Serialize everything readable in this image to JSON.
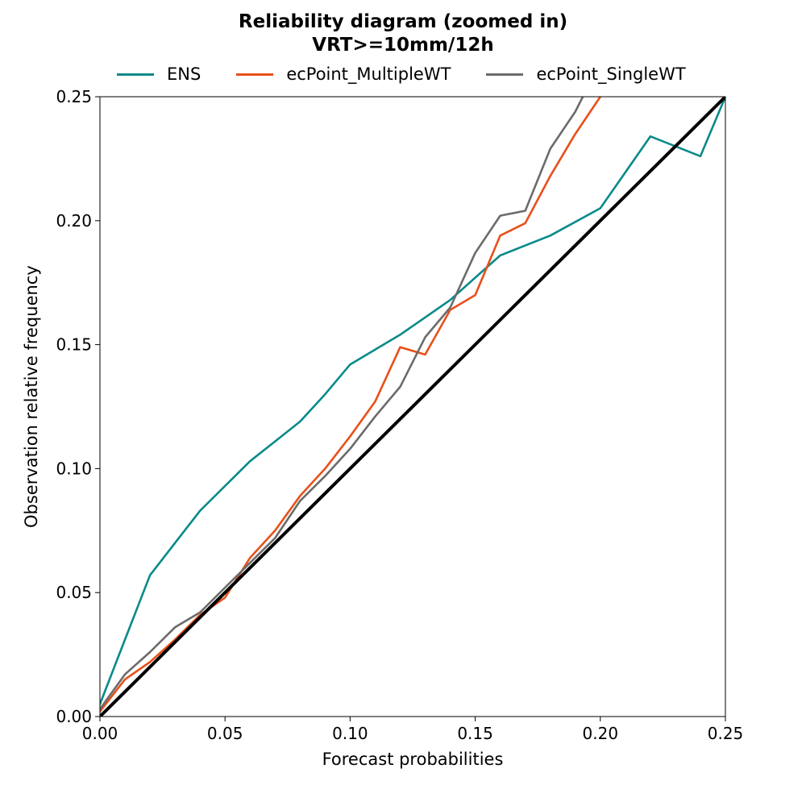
{
  "chart_data": {
    "type": "line",
    "title_line1": "Reliability diagram (zoomed in)",
    "title_line2": "VRT>=10mm/12h",
    "xlabel": "Forecast probabilities",
    "ylabel": "Observation relative frequency",
    "xlim": [
      0.0,
      0.25
    ],
    "ylim": [
      0.0,
      0.25
    ],
    "x_ticks": [
      "0.00",
      "0.05",
      "0.10",
      "0.15",
      "0.20",
      "0.25"
    ],
    "y_ticks": [
      "0.00",
      "0.05",
      "0.10",
      "0.15",
      "0.20",
      "0.25"
    ],
    "grid": false,
    "legend_position": "top",
    "diagonal": {
      "color": "#000000",
      "points": [
        [
          0.0,
          0.0
        ],
        [
          0.25,
          0.25
        ]
      ]
    },
    "series": [
      {
        "name": "ENS",
        "color": "#0a8a8a",
        "points": [
          [
            0.0,
            0.005
          ],
          [
            0.01,
            0.031
          ],
          [
            0.02,
            0.057
          ],
          [
            0.03,
            0.07
          ],
          [
            0.04,
            0.083
          ],
          [
            0.05,
            0.093
          ],
          [
            0.06,
            0.103
          ],
          [
            0.07,
            0.111
          ],
          [
            0.08,
            0.119
          ],
          [
            0.09,
            0.13
          ],
          [
            0.1,
            0.142
          ],
          [
            0.11,
            0.148
          ],
          [
            0.12,
            0.154
          ],
          [
            0.13,
            0.161
          ],
          [
            0.14,
            0.168
          ],
          [
            0.15,
            0.177
          ],
          [
            0.16,
            0.186
          ],
          [
            0.17,
            0.19
          ],
          [
            0.18,
            0.194
          ],
          [
            0.2,
            0.205
          ],
          [
            0.22,
            0.234
          ],
          [
            0.24,
            0.226
          ],
          [
            0.25,
            0.25
          ]
        ]
      },
      {
        "name": "ecPoint_MultipleWT",
        "color": "#e8501a",
        "points": [
          [
            0.0,
            0.002
          ],
          [
            0.01,
            0.015
          ],
          [
            0.02,
            0.022
          ],
          [
            0.03,
            0.031
          ],
          [
            0.04,
            0.041
          ],
          [
            0.05,
            0.048
          ],
          [
            0.06,
            0.064
          ],
          [
            0.07,
            0.075
          ],
          [
            0.08,
            0.089
          ],
          [
            0.09,
            0.1
          ],
          [
            0.1,
            0.113
          ],
          [
            0.11,
            0.127
          ],
          [
            0.12,
            0.149
          ],
          [
            0.13,
            0.146
          ],
          [
            0.14,
            0.164
          ],
          [
            0.15,
            0.17
          ],
          [
            0.16,
            0.194
          ],
          [
            0.17,
            0.199
          ],
          [
            0.18,
            0.218
          ],
          [
            0.19,
            0.235
          ],
          [
            0.2,
            0.25
          ]
        ]
      },
      {
        "name": "ecPoint_SingleWT",
        "color": "#6b6b6b",
        "points": [
          [
            0.0,
            0.003
          ],
          [
            0.01,
            0.017
          ],
          [
            0.02,
            0.026
          ],
          [
            0.03,
            0.036
          ],
          [
            0.04,
            0.042
          ],
          [
            0.05,
            0.052
          ],
          [
            0.06,
            0.062
          ],
          [
            0.07,
            0.072
          ],
          [
            0.08,
            0.087
          ],
          [
            0.09,
            0.097
          ],
          [
            0.1,
            0.108
          ],
          [
            0.11,
            0.121
          ],
          [
            0.12,
            0.133
          ],
          [
            0.13,
            0.153
          ],
          [
            0.14,
            0.165
          ],
          [
            0.15,
            0.187
          ],
          [
            0.16,
            0.202
          ],
          [
            0.17,
            0.204
          ],
          [
            0.18,
            0.229
          ],
          [
            0.19,
            0.244
          ],
          [
            0.193,
            0.25
          ]
        ]
      }
    ]
  }
}
